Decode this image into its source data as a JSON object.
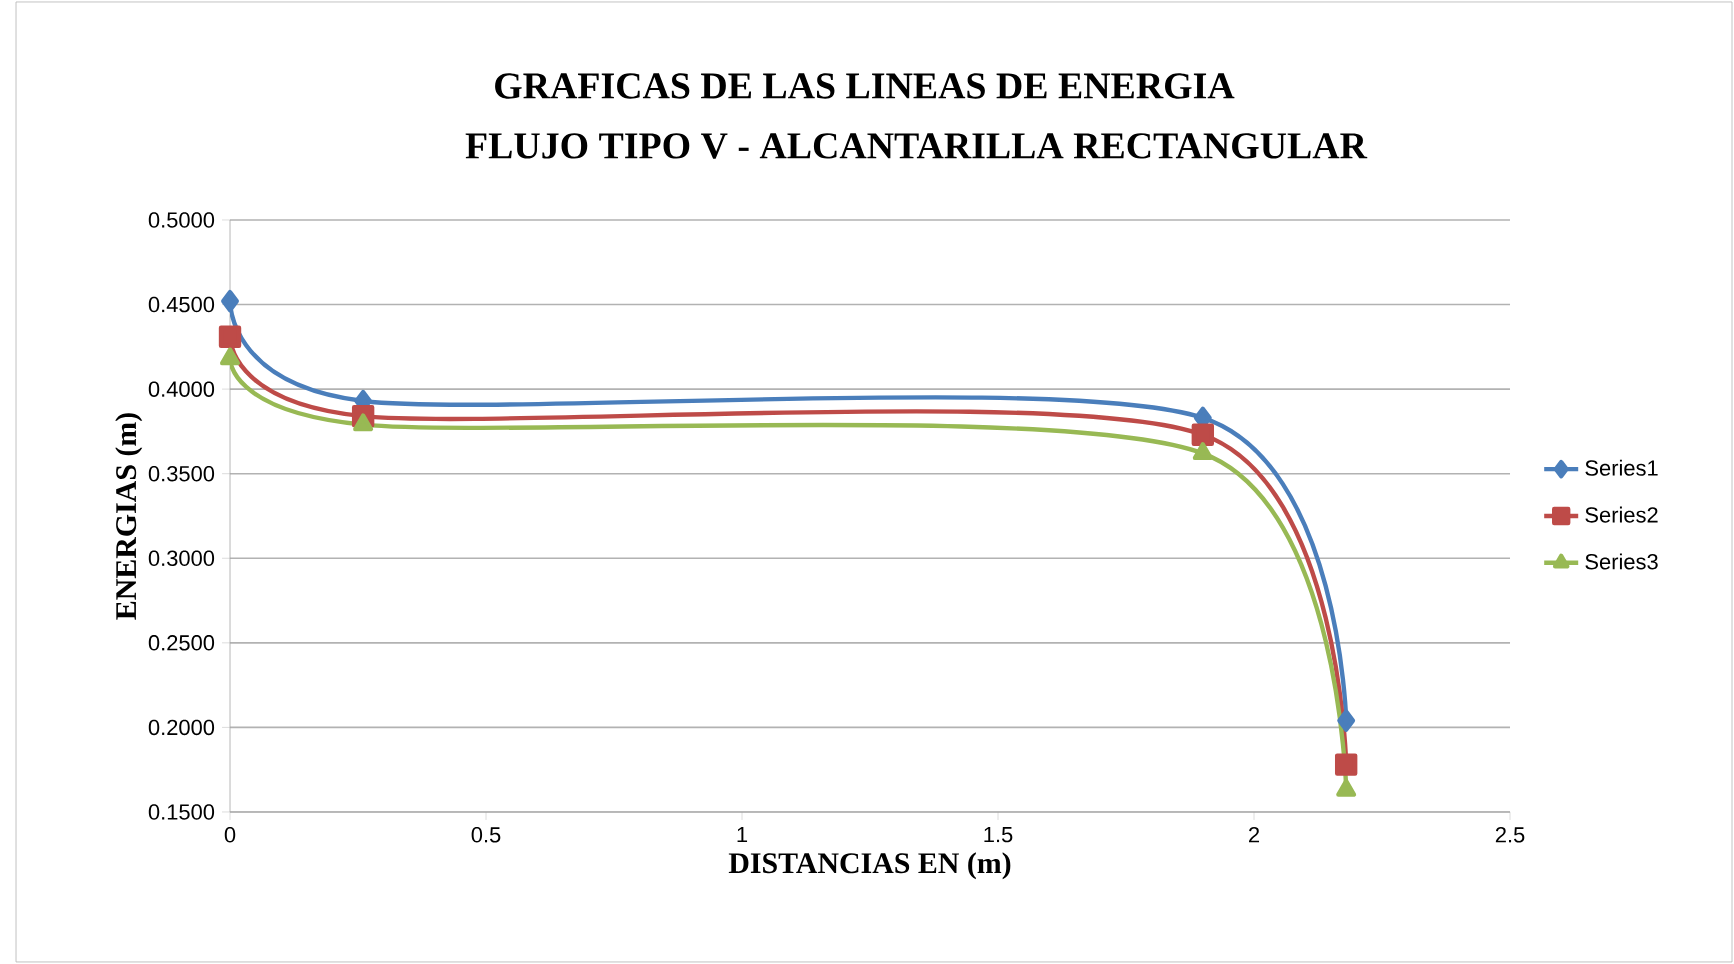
{
  "chart_data": {
    "type": "line",
    "title": "GRAFICAS DE LAS LINEAS DE ENERGIA",
    "subtitle": "FLUJO TIPO V - ALCANTARILLA RECTANGULAR",
    "xlabel": "DISTANCIAS EN (m)",
    "ylabel": "ENERGIAS (m)",
    "x": [
      0,
      0.26,
      1.9,
      2.18
    ],
    "series": [
      {
        "name": "Series1",
        "color": "#4a7ebb",
        "marker": "diamond",
        "values": [
          0.452,
          0.393,
          0.383,
          0.204
        ]
      },
      {
        "name": "Series2",
        "color": "#be4b48",
        "marker": "square",
        "values": [
          0.431,
          0.384,
          0.373,
          0.178
        ]
      },
      {
        "name": "Series3",
        "color": "#98b954",
        "marker": "triangle",
        "values": [
          0.418,
          0.379,
          0.362,
          0.163
        ]
      }
    ],
    "xlim": [
      0,
      2.5
    ],
    "xticks": [
      0,
      0.5,
      1,
      1.5,
      2,
      2.5
    ],
    "ylim": [
      0.15,
      0.5
    ],
    "yticks": [
      {
        "value": 0.15,
        "label": "0.1500"
      },
      {
        "value": 0.2,
        "label": "0.2000"
      },
      {
        "value": 0.25,
        "label": "0.2500"
      },
      {
        "value": 0.3,
        "label": "0.3000"
      },
      {
        "value": 0.35,
        "label": "0.3500"
      },
      {
        "value": 0.4,
        "label": "0.4000"
      },
      {
        "value": 0.45,
        "label": "0.4500"
      },
      {
        "value": 0.5,
        "label": "0.5000"
      }
    ],
    "grid": "y",
    "legend": "right",
    "line_style": "solid"
  }
}
